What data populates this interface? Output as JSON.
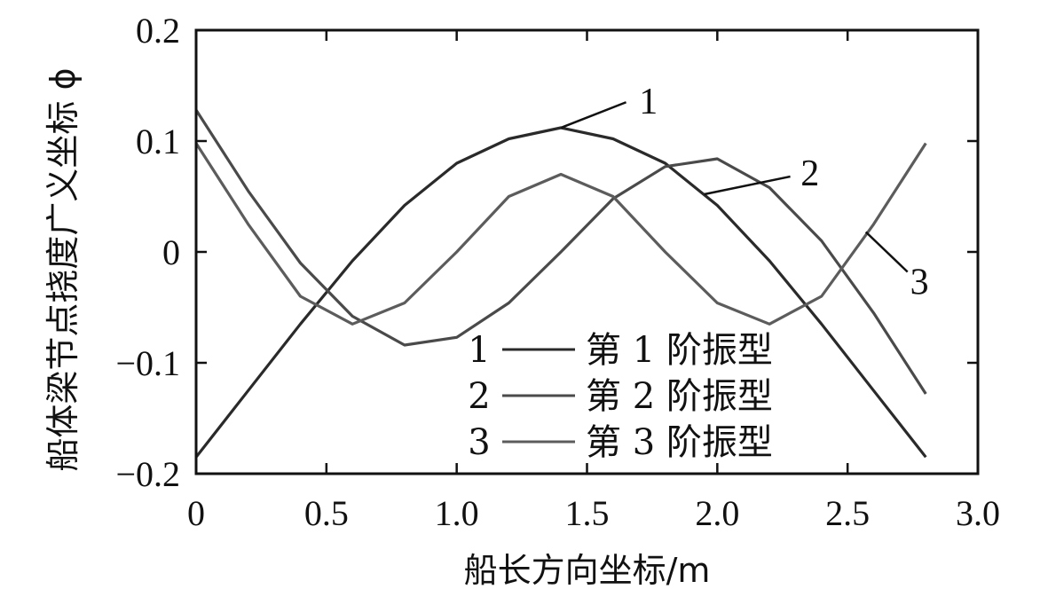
{
  "chart_data": {
    "type": "line",
    "title": "",
    "xlabel": "船长方向坐标/m",
    "ylabel": "船体梁节点挠度广义坐标 ϕ",
    "xlim": [
      0,
      3.0
    ],
    "ylim": [
      -0.2,
      0.2
    ],
    "x_ticks": [
      "0",
      "0.5",
      "1.0",
      "1.5",
      "2.0",
      "2.5",
      "3.0"
    ],
    "y_ticks": [
      "0.2",
      "0.1",
      "0",
      "−0.1",
      "−0.2"
    ],
    "x_tick_values": [
      0,
      0.5,
      1.0,
      1.5,
      2.0,
      2.5,
      3.0
    ],
    "y_tick_values": [
      0.2,
      0.1,
      0,
      -0.1,
      -0.2
    ],
    "x": [
      0,
      0.2,
      0.4,
      0.6,
      0.8,
      1.0,
      1.2,
      1.4,
      1.6,
      1.8,
      2.0,
      2.2,
      2.4,
      2.6,
      2.8
    ],
    "series": [
      {
        "name": "第 1 阶振型",
        "index_label": "1",
        "color": "#2a2a2a",
        "values": [
          -0.185,
          -0.125,
          -0.065,
          -0.008,
          0.042,
          0.08,
          0.102,
          0.112,
          0.102,
          0.08,
          0.042,
          -0.008,
          -0.065,
          -0.125,
          -0.185
        ]
      },
      {
        "name": "第 2 阶振型",
        "index_label": "2",
        "color": "#4a4a4a",
        "values": [
          0.128,
          0.055,
          -0.01,
          -0.058,
          -0.084,
          -0.077,
          -0.046,
          0.0,
          0.048,
          0.077,
          0.084,
          0.058,
          0.01,
          -0.055,
          -0.128
        ]
      },
      {
        "name": "第 3 阶振型",
        "index_label": "3",
        "color": "#5c5c5c",
        "values": [
          0.098,
          0.025,
          -0.04,
          -0.065,
          -0.046,
          0.0,
          0.05,
          0.07,
          0.05,
          0.0,
          -0.046,
          -0.065,
          -0.04,
          0.025,
          0.098
        ]
      }
    ],
    "callouts": [
      {
        "label": "1",
        "series": 0
      },
      {
        "label": "2",
        "series": 1
      },
      {
        "label": "3",
        "series": 2
      }
    ],
    "grid": false,
    "legend_position": "bottom-center"
  }
}
